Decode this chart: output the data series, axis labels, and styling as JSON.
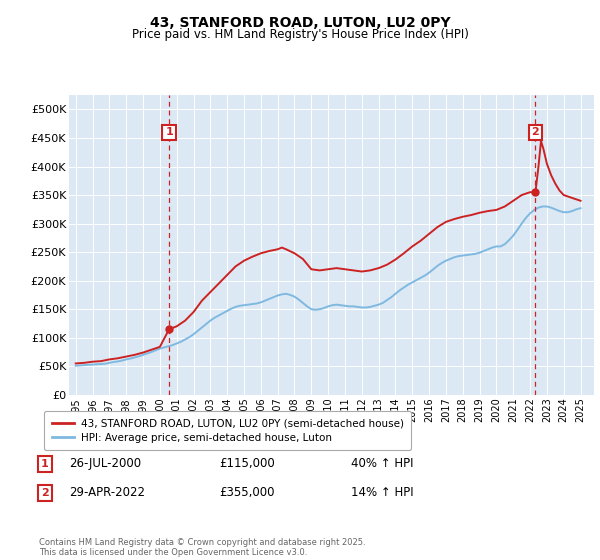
{
  "title": "43, STANFORD ROAD, LUTON, LU2 0PY",
  "subtitle": "Price paid vs. HM Land Registry's House Price Index (HPI)",
  "plot_bg_color": "#dce9f5",
  "yticks": [
    0,
    50000,
    100000,
    150000,
    200000,
    250000,
    300000,
    350000,
    400000,
    450000,
    500000
  ],
  "ylim": [
    0,
    525000
  ],
  "xlim_start": 1994.6,
  "xlim_end": 2025.8,
  "hpi_color": "#7fb9e0",
  "price_color": "#cc2222",
  "transaction1": {
    "date_num": 2000.55,
    "price": 115000,
    "label": "1",
    "date_str": "26-JUL-2000",
    "price_str": "£115,000",
    "pct": "40% ↑ HPI"
  },
  "transaction2": {
    "date_num": 2022.32,
    "price": 355000,
    "label": "2",
    "date_str": "29-APR-2022",
    "price_str": "£355,000",
    "pct": "14% ↑ HPI"
  },
  "legend1": "43, STANFORD ROAD, LUTON, LU2 0PY (semi-detached house)",
  "legend2": "HPI: Average price, semi-detached house, Luton",
  "footer": "Contains HM Land Registry data © Crown copyright and database right 2025.\nThis data is licensed under the Open Government Licence v3.0.",
  "hpi_data": [
    [
      1995.0,
      51000
    ],
    [
      1995.25,
      51500
    ],
    [
      1995.5,
      52000
    ],
    [
      1995.75,
      52500
    ],
    [
      1996.0,
      53000
    ],
    [
      1996.25,
      53500
    ],
    [
      1996.5,
      54000
    ],
    [
      1996.75,
      54500
    ],
    [
      1997.0,
      56000
    ],
    [
      1997.25,
      57500
    ],
    [
      1997.5,
      58500
    ],
    [
      1997.75,
      60000
    ],
    [
      1998.0,
      62000
    ],
    [
      1998.25,
      63500
    ],
    [
      1998.5,
      65500
    ],
    [
      1998.75,
      67500
    ],
    [
      1999.0,
      70000
    ],
    [
      1999.25,
      72500
    ],
    [
      1999.5,
      75000
    ],
    [
      1999.75,
      78000
    ],
    [
      2000.0,
      81000
    ],
    [
      2000.25,
      83000
    ],
    [
      2000.5,
      85000
    ],
    [
      2000.75,
      87000
    ],
    [
      2001.0,
      90000
    ],
    [
      2001.25,
      93000
    ],
    [
      2001.5,
      97000
    ],
    [
      2001.75,
      101000
    ],
    [
      2002.0,
      106000
    ],
    [
      2002.25,
      112000
    ],
    [
      2002.5,
      118000
    ],
    [
      2002.75,
      124000
    ],
    [
      2003.0,
      130000
    ],
    [
      2003.25,
      135000
    ],
    [
      2003.5,
      139000
    ],
    [
      2003.75,
      143000
    ],
    [
      2004.0,
      147000
    ],
    [
      2004.25,
      151000
    ],
    [
      2004.5,
      154000
    ],
    [
      2004.75,
      156000
    ],
    [
      2005.0,
      157000
    ],
    [
      2005.25,
      158000
    ],
    [
      2005.5,
      159000
    ],
    [
      2005.75,
      160000
    ],
    [
      2006.0,
      162000
    ],
    [
      2006.25,
      165000
    ],
    [
      2006.5,
      168000
    ],
    [
      2006.75,
      171000
    ],
    [
      2007.0,
      174000
    ],
    [
      2007.25,
      176000
    ],
    [
      2007.5,
      177000
    ],
    [
      2007.75,
      175000
    ],
    [
      2008.0,
      172000
    ],
    [
      2008.25,
      167000
    ],
    [
      2008.5,
      161000
    ],
    [
      2008.75,
      155000
    ],
    [
      2009.0,
      150000
    ],
    [
      2009.25,
      149000
    ],
    [
      2009.5,
      150000
    ],
    [
      2009.75,
      152000
    ],
    [
      2010.0,
      155000
    ],
    [
      2010.25,
      157000
    ],
    [
      2010.5,
      158000
    ],
    [
      2010.75,
      157000
    ],
    [
      2011.0,
      156000
    ],
    [
      2011.25,
      155000
    ],
    [
      2011.5,
      155000
    ],
    [
      2011.75,
      154000
    ],
    [
      2012.0,
      153000
    ],
    [
      2012.25,
      153000
    ],
    [
      2012.5,
      154000
    ],
    [
      2012.75,
      156000
    ],
    [
      2013.0,
      158000
    ],
    [
      2013.25,
      161000
    ],
    [
      2013.5,
      166000
    ],
    [
      2013.75,
      171000
    ],
    [
      2014.0,
      177000
    ],
    [
      2014.25,
      183000
    ],
    [
      2014.5,
      188000
    ],
    [
      2014.75,
      193000
    ],
    [
      2015.0,
      197000
    ],
    [
      2015.25,
      201000
    ],
    [
      2015.5,
      205000
    ],
    [
      2015.75,
      209000
    ],
    [
      2016.0,
      214000
    ],
    [
      2016.25,
      220000
    ],
    [
      2016.5,
      226000
    ],
    [
      2016.75,
      231000
    ],
    [
      2017.0,
      235000
    ],
    [
      2017.25,
      238000
    ],
    [
      2017.5,
      241000
    ],
    [
      2017.75,
      243000
    ],
    [
      2018.0,
      244000
    ],
    [
      2018.25,
      245000
    ],
    [
      2018.5,
      246000
    ],
    [
      2018.75,
      247000
    ],
    [
      2019.0,
      249000
    ],
    [
      2019.25,
      252000
    ],
    [
      2019.5,
      255000
    ],
    [
      2019.75,
      258000
    ],
    [
      2020.0,
      260000
    ],
    [
      2020.25,
      260000
    ],
    [
      2020.5,
      264000
    ],
    [
      2020.75,
      271000
    ],
    [
      2021.0,
      279000
    ],
    [
      2021.25,
      289000
    ],
    [
      2021.5,
      300000
    ],
    [
      2021.75,
      310000
    ],
    [
      2022.0,
      318000
    ],
    [
      2022.25,
      324000
    ],
    [
      2022.5,
      328000
    ],
    [
      2022.75,
      330000
    ],
    [
      2023.0,
      330000
    ],
    [
      2023.25,
      328000
    ],
    [
      2023.5,
      325000
    ],
    [
      2023.75,
      322000
    ],
    [
      2024.0,
      320000
    ],
    [
      2024.25,
      320000
    ],
    [
      2024.5,
      322000
    ],
    [
      2024.75,
      325000
    ],
    [
      2025.0,
      327000
    ]
  ],
  "price_data": [
    [
      1995.0,
      55000
    ],
    [
      1995.25,
      55500
    ],
    [
      1995.5,
      56000
    ],
    [
      1995.75,
      57000
    ],
    [
      1996.0,
      58000
    ],
    [
      1996.5,
      59000
    ],
    [
      1997.0,
      62000
    ],
    [
      1997.5,
      64000
    ],
    [
      1998.0,
      67000
    ],
    [
      1998.5,
      70000
    ],
    [
      1999.0,
      74000
    ],
    [
      1999.5,
      79000
    ],
    [
      2000.0,
      84000
    ],
    [
      2000.55,
      115000
    ],
    [
      2001.0,
      120000
    ],
    [
      2001.5,
      130000
    ],
    [
      2002.0,
      145000
    ],
    [
      2002.5,
      165000
    ],
    [
      2003.0,
      180000
    ],
    [
      2003.5,
      195000
    ],
    [
      2004.0,
      210000
    ],
    [
      2004.5,
      225000
    ],
    [
      2005.0,
      235000
    ],
    [
      2005.5,
      242000
    ],
    [
      2006.0,
      248000
    ],
    [
      2006.5,
      252000
    ],
    [
      2007.0,
      255000
    ],
    [
      2007.25,
      258000
    ],
    [
      2007.5,
      255000
    ],
    [
      2008.0,
      248000
    ],
    [
      2008.5,
      238000
    ],
    [
      2009.0,
      220000
    ],
    [
      2009.5,
      218000
    ],
    [
      2010.0,
      220000
    ],
    [
      2010.5,
      222000
    ],
    [
      2011.0,
      220000
    ],
    [
      2011.5,
      218000
    ],
    [
      2012.0,
      216000
    ],
    [
      2012.5,
      218000
    ],
    [
      2013.0,
      222000
    ],
    [
      2013.5,
      228000
    ],
    [
      2014.0,
      237000
    ],
    [
      2014.5,
      248000
    ],
    [
      2015.0,
      260000
    ],
    [
      2015.5,
      270000
    ],
    [
      2016.0,
      282000
    ],
    [
      2016.5,
      294000
    ],
    [
      2017.0,
      303000
    ],
    [
      2017.5,
      308000
    ],
    [
      2018.0,
      312000
    ],
    [
      2018.5,
      315000
    ],
    [
      2019.0,
      319000
    ],
    [
      2019.5,
      322000
    ],
    [
      2020.0,
      324000
    ],
    [
      2020.5,
      330000
    ],
    [
      2021.0,
      340000
    ],
    [
      2021.5,
      350000
    ],
    [
      2022.0,
      355000
    ],
    [
      2022.32,
      355000
    ],
    [
      2022.5,
      400000
    ],
    [
      2022.65,
      445000
    ],
    [
      2022.8,
      430000
    ],
    [
      2023.0,
      405000
    ],
    [
      2023.25,
      385000
    ],
    [
      2023.5,
      370000
    ],
    [
      2023.75,
      358000
    ],
    [
      2024.0,
      350000
    ],
    [
      2024.5,
      345000
    ],
    [
      2025.0,
      340000
    ]
  ]
}
